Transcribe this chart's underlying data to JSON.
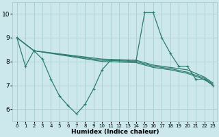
{
  "xlabel": "Humidex (Indice chaleur)",
  "bg_color": "#cce8ec",
  "grid_color": "#aacccc",
  "line_color": "#2e7d6e",
  "xlim": [
    -0.5,
    23.5
  ],
  "ylim": [
    5.5,
    10.5
  ],
  "yticks": [
    6,
    7,
    8,
    9,
    10
  ],
  "xticks": [
    0,
    1,
    2,
    3,
    4,
    5,
    6,
    7,
    8,
    9,
    10,
    11,
    12,
    13,
    14,
    15,
    16,
    17,
    18,
    19,
    20,
    21,
    22,
    23
  ],
  "lines": [
    {
      "x": [
        0,
        1,
        2,
        3,
        4,
        5,
        6,
        7,
        8,
        9,
        10,
        11,
        12,
        13,
        14,
        15,
        16,
        17,
        18,
        19,
        20,
        21,
        22,
        23
      ],
      "y": [
        9.0,
        7.8,
        8.45,
        8.1,
        7.25,
        6.55,
        6.15,
        5.8,
        6.2,
        6.85,
        7.65,
        8.05,
        8.05,
        8.05,
        8.05,
        10.05,
        10.05,
        9.0,
        8.35,
        7.8,
        7.8,
        7.25,
        7.25,
        7.0
      ]
    },
    {
      "x": [
        0,
        2,
        10,
        14,
        16,
        18,
        20,
        22,
        23
      ],
      "y": [
        9.0,
        8.45,
        8.1,
        8.05,
        7.85,
        7.75,
        7.65,
        7.35,
        7.1
      ]
    },
    {
      "x": [
        0,
        2,
        10,
        14,
        16,
        18,
        20,
        22,
        23
      ],
      "y": [
        9.0,
        8.45,
        8.05,
        8.0,
        7.8,
        7.7,
        7.55,
        7.3,
        7.05
      ]
    },
    {
      "x": [
        0,
        2,
        10,
        14,
        16,
        18,
        20,
        22,
        23
      ],
      "y": [
        9.0,
        8.45,
        8.0,
        7.95,
        7.75,
        7.65,
        7.5,
        7.25,
        7.0
      ]
    }
  ]
}
